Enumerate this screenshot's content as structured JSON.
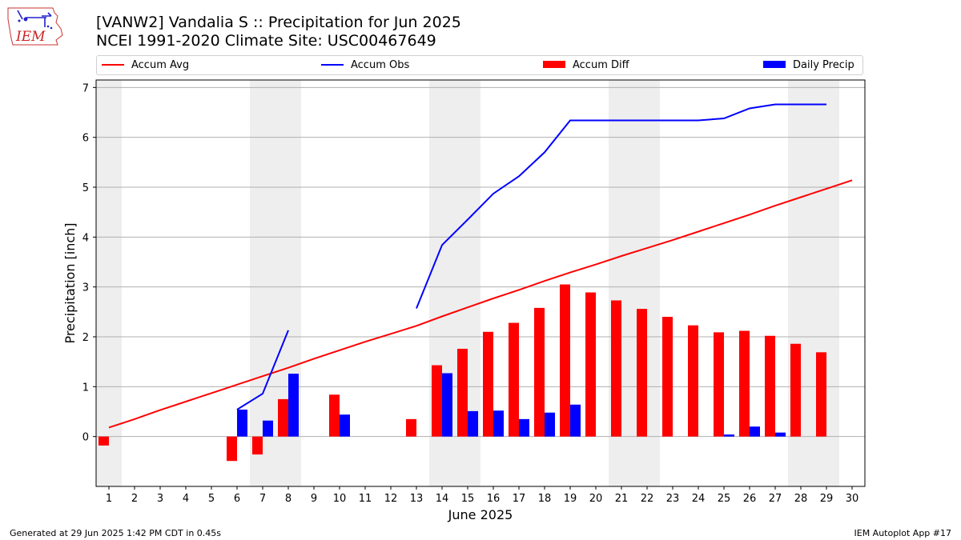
{
  "header": {
    "title_line1": "[VANW2] Vandalia S :: Precipitation for Jun 2025",
    "title_line2": "NCEI 1991-2020 Climate Site: USC00467649"
  },
  "logo": {
    "text": "IEM",
    "icon": "iem-iowa-logo"
  },
  "legend": [
    {
      "label": "Accum Avg",
      "kind": "line",
      "color": "#ff0000"
    },
    {
      "label": "Accum Obs",
      "kind": "line",
      "color": "#0000ff"
    },
    {
      "label": "Accum Diff",
      "kind": "bar",
      "color": "#ff0000"
    },
    {
      "label": "Daily Precip",
      "kind": "bar",
      "color": "#0000ff"
    }
  ],
  "footer": {
    "left": "Generated at 29 Jun 2025 1:42 PM CDT in 0.45s",
    "right": "IEM Autoplot App #17"
  },
  "chart_data": {
    "type": "bar",
    "xlabel": "June 2025",
    "ylabel": "Precipitation [inch]",
    "xlim": [
      0.5,
      30.5
    ],
    "ylim": [
      -1.0,
      7.15
    ],
    "x_ticks": [
      1,
      2,
      3,
      4,
      5,
      6,
      7,
      8,
      9,
      10,
      11,
      12,
      13,
      14,
      15,
      16,
      17,
      18,
      19,
      20,
      21,
      22,
      23,
      24,
      25,
      26,
      27,
      28,
      29,
      30
    ],
    "y_ticks": [
      0,
      1,
      2,
      3,
      4,
      5,
      6,
      7
    ],
    "grid": "horizontal",
    "legend_position": "top",
    "weekend_shading": [
      [
        0.5,
        1.5
      ],
      [
        6.5,
        8.5
      ],
      [
        13.5,
        15.5
      ],
      [
        20.5,
        22.5
      ],
      [
        27.5,
        29.5
      ]
    ],
    "days": [
      1,
      2,
      3,
      4,
      5,
      6,
      7,
      8,
      9,
      10,
      11,
      12,
      13,
      14,
      15,
      16,
      17,
      18,
      19,
      20,
      21,
      22,
      23,
      24,
      25,
      26,
      27,
      28,
      29,
      30
    ],
    "series": [
      {
        "name": "Accum Avg",
        "kind": "line",
        "color": "#ff0000",
        "values": [
          0.18,
          0.35,
          0.53,
          0.7,
          0.87,
          1.04,
          1.21,
          1.38,
          1.56,
          1.73,
          1.9,
          2.06,
          2.22,
          2.41,
          2.59,
          2.77,
          2.94,
          3.12,
          3.29,
          3.45,
          3.62,
          3.78,
          3.94,
          4.11,
          4.28,
          4.45,
          4.63,
          4.8,
          4.97,
          5.14
        ]
      },
      {
        "name": "Accum Obs",
        "kind": "line",
        "color": "#0000ff",
        "values": [
          null,
          null,
          null,
          null,
          null,
          0.54,
          0.86,
          2.13,
          null,
          null,
          null,
          null,
          2.57,
          3.84,
          4.35,
          4.87,
          5.22,
          5.7,
          6.34,
          6.34,
          6.34,
          6.34,
          6.34,
          6.34,
          6.38,
          6.58,
          6.66,
          6.66,
          6.66,
          null
        ]
      },
      {
        "name": "Accum Diff",
        "kind": "bar",
        "color": "#ff0000",
        "values": [
          -0.18,
          null,
          null,
          null,
          null,
          -0.49,
          -0.36,
          0.75,
          null,
          0.84,
          null,
          null,
          0.35,
          1.43,
          1.76,
          2.1,
          2.28,
          2.58,
          3.05,
          2.89,
          2.73,
          2.56,
          2.4,
          2.23,
          2.09,
          2.12,
          2.02,
          1.86,
          1.69,
          null
        ]
      },
      {
        "name": "Daily Precip",
        "kind": "bar",
        "color": "#0000ff",
        "values": [
          null,
          null,
          null,
          null,
          null,
          0.54,
          0.32,
          1.26,
          null,
          0.44,
          null,
          null,
          null,
          1.27,
          0.51,
          0.52,
          0.35,
          0.48,
          0.64,
          null,
          null,
          null,
          null,
          null,
          0.04,
          0.2,
          0.08,
          null,
          null,
          null
        ]
      }
    ]
  }
}
